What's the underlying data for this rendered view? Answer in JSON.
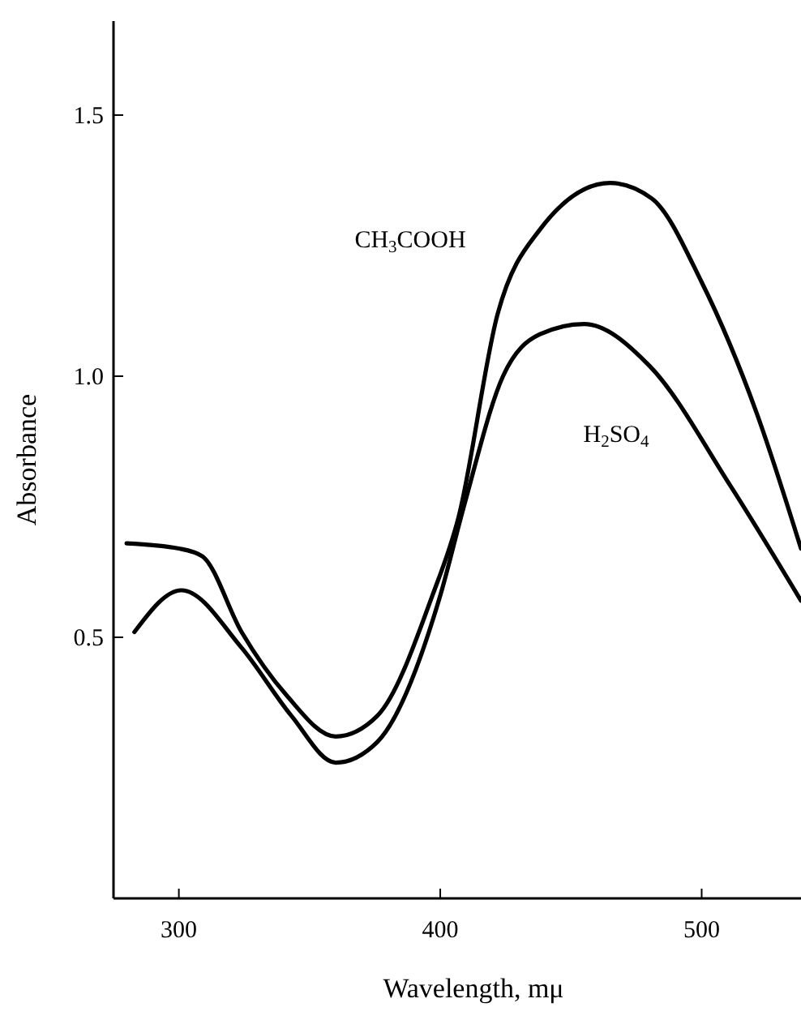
{
  "chart_data": {
    "type": "line",
    "xlabel": "Wavelength, mμ",
    "ylabel": "Absorbance",
    "xlim": [
      275,
      538
    ],
    "ylim": [
      0,
      1.68
    ],
    "xticks": [
      300,
      400,
      500
    ],
    "yticks": [
      0.5,
      {
        "value": 1,
        "label": "1.0"
      },
      1.5
    ],
    "grid": false,
    "line_style": "solid",
    "series": [
      {
        "name": "CH$_{3}$COOH",
        "color": "#000000",
        "x": [
          280,
          300,
          309,
          324,
          341,
          360,
          376,
          397,
          407,
          422,
          438,
          465,
          481,
          500,
          521,
          538
        ],
        "values": [
          0.68,
          0.67,
          0.655,
          0.51,
          0.39,
          0.31,
          0.35,
          0.58,
          0.73,
          1.12,
          1.28,
          1.37,
          1.34,
          1.18,
          0.93,
          0.67
        ]
      },
      {
        "name": "H$_{2}$SO$_{4}$",
        "color": "#000000",
        "x": [
          283,
          301,
          324,
          343,
          360,
          376,
          400,
          409,
          424,
          438,
          455,
          480,
          511,
          538
        ],
        "values": [
          0.51,
          0.59,
          0.48,
          0.35,
          0.26,
          0.3,
          0.58,
          0.75,
          1.0,
          1.08,
          1.1,
          1.02,
          0.79,
          0.57
        ]
      }
    ]
  }
}
